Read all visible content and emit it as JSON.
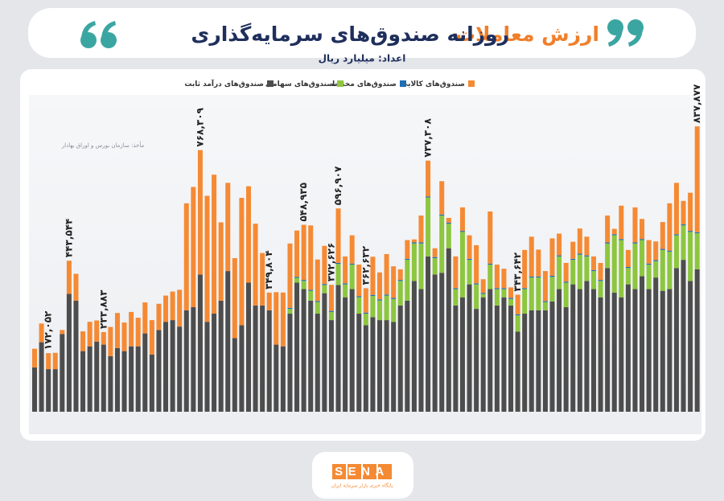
{
  "chart_data": {
    "type": "stacked_bar",
    "title_parts": [
      "ارزش معاملات",
      "روزانه صندوق‌های سرمایه‌گذاری"
    ],
    "subtitle": "اعداد: میلیارد ریال",
    "source": "مأخذ: سازمان بورس و اوراق بهادار",
    "categories": [
      null,
      null,
      null,
      null,
      null,
      null,
      null,
      null,
      null,
      null,
      null,
      null,
      null,
      null,
      null,
      null,
      null,
      null,
      null,
      null,
      null,
      null,
      null,
      null,
      null,
      null,
      null,
      null,
      null,
      null,
      null,
      null,
      null,
      null,
      null,
      null,
      null,
      null,
      null,
      null,
      null,
      null,
      null,
      null,
      null,
      null,
      null,
      null,
      null,
      null,
      null,
      null,
      null,
      null,
      null,
      null,
      null,
      null,
      null,
      null,
      null,
      null,
      null,
      null,
      null,
      null,
      null,
      null,
      null,
      null,
      null,
      null,
      null,
      null,
      null,
      null,
      null,
      null,
      null,
      null,
      null,
      null,
      null,
      null,
      null,
      null,
      null,
      null,
      null,
      null,
      null,
      null,
      null,
      null,
      null,
      null,
      null
    ],
    "ylim": [
      0,
      850000
    ],
    "series": [
      {
        "name": "صندوق‌های درآمد ثابت",
        "color": "#4d4d4d",
        "values": [
          130000,
          204000,
          125000,
          125000,
          228000,
          346000,
          326000,
          178000,
          192000,
          206000,
          197000,
          163000,
          187000,
          178000,
          192000,
          192000,
          230000,
          168000,
          240000,
          264000,
          269000,
          250000,
          298000,
          307000,
          403000,
          264000,
          288000,
          326000,
          413000,
          216000,
          254000,
          379000,
          312000,
          312000,
          298000,
          197000,
          192000,
          288000,
          379000,
          360000,
          326000,
          288000,
          348000,
          269000,
          372000,
          336000,
          360000,
          288000,
          254000,
          278000,
          269000,
          269000,
          264000,
          312000,
          326000,
          384000,
          360000,
          456000,
          403000,
          408000,
          480000,
          312000,
          336000,
          374000,
          302000,
          336000,
          360000,
          312000,
          336000,
          312000,
          235000,
          288000,
          298000,
          298000,
          298000,
          324000,
          360000,
          307000,
          374000,
          360000,
          384000,
          360000,
          336000,
          422000,
          350000,
          336000,
          374000,
          360000,
          398000,
          360000,
          394000,
          355000,
          360000,
          422000,
          446000,
          384000,
          418000
        ]
      },
      {
        "name": "صندوق‌های سهامی",
        "color": "#8dc63f",
        "values": [
          0,
          0,
          0,
          0,
          0,
          0,
          0,
          0,
          0,
          0,
          0,
          0,
          0,
          0,
          0,
          0,
          0,
          0,
          0,
          0,
          0,
          0,
          0,
          0,
          0,
          0,
          0,
          0,
          0,
          0,
          0,
          0,
          0,
          0,
          0,
          0,
          0,
          14000,
          14000,
          24000,
          29000,
          34000,
          24000,
          24000,
          62000,
          38000,
          72000,
          48000,
          34000,
          62000,
          58000,
          72000,
          67000,
          72000,
          120000,
          110000,
          134000,
          173000,
          48000,
          168000,
          72000,
          48000,
          192000,
          72000,
          72000,
          10000,
          72000,
          48000,
          24000,
          19000,
          48000,
          72000,
          96000,
          96000,
          24000,
          72000,
          96000,
          72000,
          72000,
          101000,
          72000,
          53000,
          48000,
          72000,
          168000,
          168000,
          48000,
          134000,
          106000,
          72000,
          48000,
          120000,
          110000,
          96000,
          101000,
          144000,
          106000
        ]
      },
      {
        "name": "صندوق‌های مختلط",
        "color": "#1f6fb2",
        "values": [
          0,
          0,
          0,
          0,
          0,
          0,
          0,
          0,
          0,
          0,
          0,
          0,
          0,
          0,
          0,
          0,
          0,
          0,
          0,
          0,
          0,
          0,
          0,
          0,
          0,
          0,
          0,
          0,
          0,
          0,
          0,
          0,
          0,
          0,
          0,
          0,
          0,
          3000,
          3000,
          3000,
          3000,
          3000,
          3000,
          3000,
          3000,
          3000,
          3000,
          3000,
          3000,
          3000,
          3000,
          3000,
          3000,
          3000,
          3000,
          3000,
          3000,
          3000,
          3000,
          3000,
          3000,
          3000,
          3000,
          3000,
          3000,
          3000,
          3000,
          3000,
          3000,
          3000,
          3000,
          3000,
          3000,
          3000,
          3000,
          3000,
          3000,
          3000,
          3000,
          3000,
          3000,
          3000,
          3000,
          3000,
          3000,
          3000,
          3000,
          3000,
          3000,
          3000,
          3000,
          3000,
          3000,
          3000,
          3000,
          3000,
          3000
        ]
      },
      {
        "name": "صندوق‌های کالایی",
        "color": "#f58a34",
        "values": [
          55000,
          55000,
          47052,
          48000,
          12000,
          97544,
          79000,
          58000,
          72000,
          62000,
          36883,
          86000,
          103000,
          84000,
          101000,
          84000,
          91000,
          101000,
          77000,
          77000,
          84000,
          108000,
          314000,
          353000,
          365309,
          370000,
          408000,
          230000,
          259000,
          235000,
          374000,
          283000,
          240000,
          154000,
          51804,
          154000,
          158000,
          189000,
          136000,
          161935,
          189000,
          122000,
          112000,
          76626,
          159907,
          79000,
          83000,
          93000,
          71632,
          112000,
          79000,
          119000,
          93000,
          31000,
          55000,
          9000,
          79000,
          105308,
          26000,
          98000,
          14000,
          93000,
          69000,
          69000,
          112000,
          40000,
          153000,
          69000,
          57000,
          31000,
          57642,
          112000,
          117000,
          79000,
          88000,
          110000,
          64000,
          55000,
          50000,
          74000,
          55000,
          40000,
          50000,
          79000,
          16000,
          98000,
          50000,
          103000,
          59000,
          69000,
          55000,
          79000,
          139000,
          151000,
          69000,
          112000,
          310877
        ]
      }
    ],
    "total_labels": [
      null,
      null,
      "۱۷۲,۰۵۲",
      null,
      null,
      "۴۴۳,۵۴۴",
      null,
      null,
      null,
      null,
      "۲۳۳,۸۸۳",
      null,
      null,
      null,
      null,
      null,
      null,
      null,
      null,
      null,
      null,
      null,
      null,
      null,
      "۷۶۸,۳۰۹",
      null,
      null,
      null,
      null,
      null,
      null,
      null,
      null,
      null,
      "۳۴۹,۸۰۴",
      null,
      null,
      null,
      null,
      "۵۴۸,۹۳۵",
      null,
      null,
      null,
      "۳۷۲,۶۲۶",
      "۵۹۶,۹۰۷",
      null,
      null,
      null,
      "۳۶۲,۶۳۲",
      null,
      null,
      null,
      null,
      null,
      null,
      null,
      null,
      "۷۳۷,۳۰۸",
      null,
      null,
      null,
      null,
      null,
      null,
      null,
      null,
      null,
      null,
      null,
      null,
      "۳۴۳,۶۴۲",
      null,
      null,
      null,
      null,
      null,
      null,
      null,
      null,
      null,
      null,
      null,
      null,
      null,
      null,
      null,
      null,
      null,
      null,
      null,
      null,
      null,
      null,
      null,
      null,
      null,
      "۸۳۷,۸۷۷"
    ]
  },
  "footer": {
    "logo": "SENA",
    "tagline": "پایگاه خبری بازار سرمایه ایران"
  }
}
